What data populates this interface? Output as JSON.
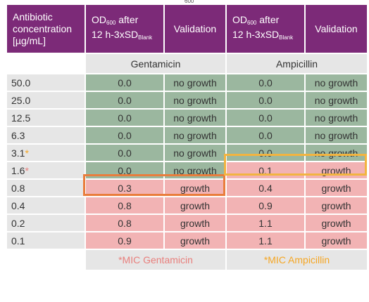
{
  "header": {
    "conc_label": "Antibiotic concentration [µg/mL]",
    "od_main": "OD",
    "od_sub": "600",
    "od_after": " after",
    "od_line2": "12 h-3xSD",
    "od_line2_sub": "Blank",
    "validation": "Validation"
  },
  "antibiotics": [
    "Gentamicin",
    "Ampicillin"
  ],
  "rows": [
    {
      "conc": "50.0",
      "star": "",
      "gent_od": "0.0",
      "gent_val": "no growth",
      "amp_od": "0.0",
      "amp_val": "no growth"
    },
    {
      "conc": "25.0",
      "star": "",
      "gent_od": "0.0",
      "gent_val": "no growth",
      "amp_od": "0.0",
      "amp_val": "no growth"
    },
    {
      "conc": "12.5",
      "star": "",
      "gent_od": "0.0",
      "gent_val": "no growth",
      "amp_od": "0.0",
      "amp_val": "no growth"
    },
    {
      "conc": "6.3",
      "star": "",
      "gent_od": "0.0",
      "gent_val": "no growth",
      "amp_od": "0.0",
      "amp_val": "no growth"
    },
    {
      "conc": "3.1",
      "star": "*",
      "gent_od": "0.0",
      "gent_val": "no growth",
      "amp_od": "0.0",
      "amp_val": "no growth"
    },
    {
      "conc": "1.6",
      "star": "*",
      "gent_od": "0.0",
      "gent_val": "no growth",
      "amp_od": "0.1",
      "amp_val": "growth"
    },
    {
      "conc": "0.8",
      "star": "",
      "gent_od": "0.3",
      "gent_val": "growth",
      "amp_od": "0.4",
      "amp_val": "growth"
    },
    {
      "conc": "0.4",
      "star": "",
      "gent_od": "0.8",
      "gent_val": "growth",
      "amp_od": "0.9",
      "amp_val": "growth"
    },
    {
      "conc": "0.2",
      "star": "",
      "gent_od": "0.8",
      "gent_val": "growth",
      "amp_od": "1.1",
      "amp_val": "growth"
    },
    {
      "conc": "0.1",
      "star": "",
      "gent_od": "0.9",
      "gent_val": "growth",
      "amp_od": "1.1",
      "amp_val": "growth"
    }
  ],
  "footer": {
    "mic_gentamicin": "*MIC Gentamicin",
    "mic_ampicillin": "*MIC Ampicillin"
  },
  "top_mark": "600",
  "colors": {
    "header_bg": "#7c2a78",
    "no_growth_bg": "#9bb79f",
    "growth_bg": "#f2b3b4",
    "label_bg": "#e6e6e6",
    "mic_gentamicin": "#e97d3c",
    "mic_ampicillin": "#f2b440"
  }
}
